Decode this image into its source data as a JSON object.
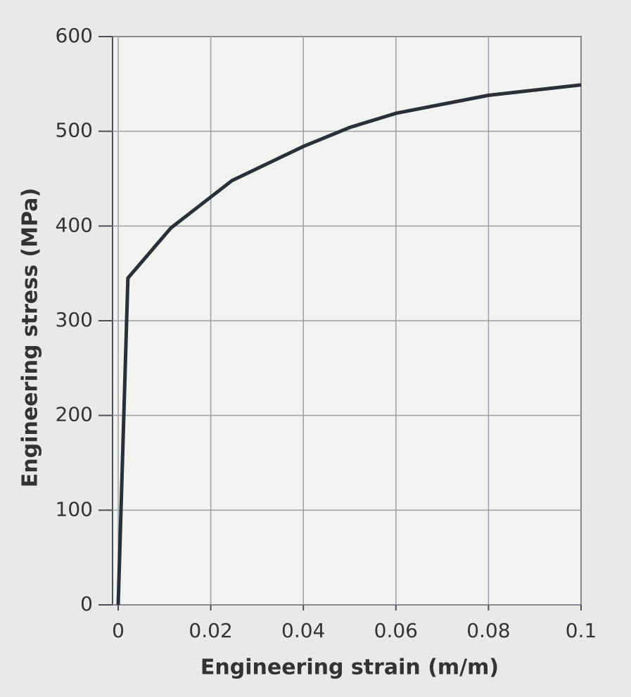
{
  "chart_data": {
    "type": "line",
    "x_label": "Engineering strain (m/m)",
    "y_label": "Engineering stress (MPa)",
    "x": [
      0,
      0.0021,
      0.0114,
      0.0246,
      0.04,
      0.05,
      0.06,
      0.08,
      0.1
    ],
    "series": [
      {
        "color": "#2b2f36",
        "values": [
          0,
          345,
          398,
          448,
          484,
          504,
          519,
          538,
          549
        ]
      }
    ],
    "xlim": [
      0,
      0.1
    ],
    "xticks": [
      0,
      0.02,
      0.04,
      0.06,
      0.08,
      0.1
    ],
    "ylim": [
      0,
      600
    ],
    "yticks": [
      0,
      100,
      200,
      300,
      400,
      500,
      600
    ],
    "grid": true
  }
}
